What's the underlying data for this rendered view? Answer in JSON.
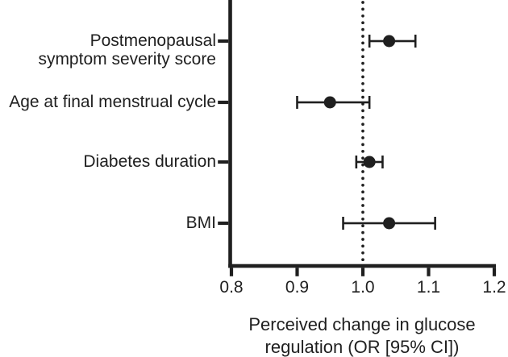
{
  "figure": {
    "background": "#ffffff",
    "ink_color": "#1f1f1f"
  },
  "chart_data": {
    "type": "scatter",
    "subtype": "forest-plot",
    "title": "",
    "xlabel": "Perceived change in glucose regulation (OR [95% CI])",
    "xlabel_line1": "Perceived change in glucose",
    "xlabel_line2": "regulation (OR [95% CI])",
    "ylabel": "",
    "xlim": [
      0.8,
      1.2
    ],
    "x_tick_values": [
      0.8,
      0.9,
      1.0,
      1.1,
      1.2
    ],
    "x_tick_labels": [
      "0.8",
      "0.9",
      "1.0",
      "1.1",
      "1.2"
    ],
    "grid": false,
    "legend": "none",
    "reference_line_x": 1.0,
    "reference_line_style": "dotted",
    "categories": [
      "Postmenopausal symptom severity score",
      "Age at final menstrual cycle",
      "Diabetes duration",
      "BMI"
    ],
    "series": [
      {
        "label": "Postmenopausal symptom severity score",
        "label_lines": [
          "Postmenopausal",
          "symptom severity score"
        ],
        "or": 1.04,
        "ci_low": 1.01,
        "ci_high": 1.08
      },
      {
        "label": "Age at final menstrual cycle",
        "label_lines": [
          "Age at final menstrual cycle"
        ],
        "or": 0.95,
        "ci_low": 0.9,
        "ci_high": 1.01
      },
      {
        "label": "Diabetes duration",
        "label_lines": [
          "Diabetes duration"
        ],
        "or": 1.01,
        "ci_low": 0.99,
        "ci_high": 1.03
      },
      {
        "label": "BMI",
        "label_lines": [
          "BMI"
        ],
        "or": 1.04,
        "ci_low": 0.97,
        "ci_high": 1.11
      }
    ],
    "marker": {
      "shape": "circle",
      "color": "#1f1f1f"
    }
  }
}
